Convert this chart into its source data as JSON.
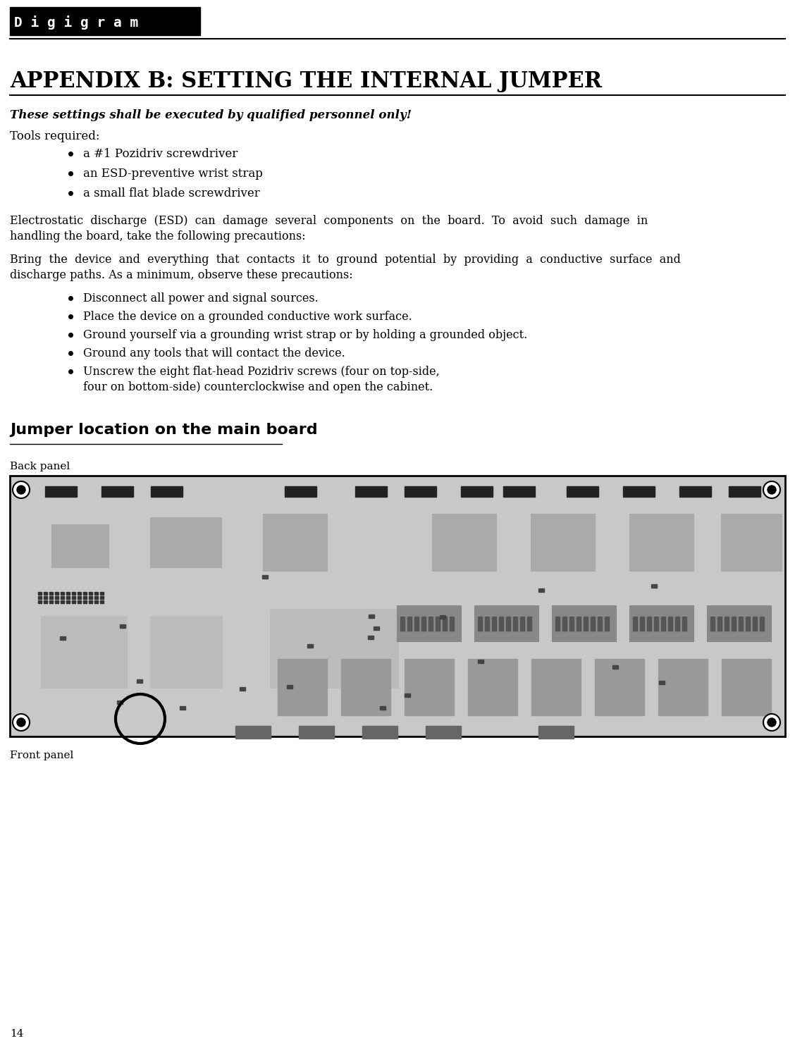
{
  "bg_color": "#ffffff",
  "header_bg": "#000000",
  "header_text": "D i g i g r a m",
  "header_text_color": "#ffffff",
  "title": "APPENDIX B: SETTING THE INTERNAL JUMPER",
  "subtitle": "These settings shall be executed by qualified personnel only!",
  "tools_label": "Tools required:",
  "tools_items": [
    "a #1 Pozidriv screwdriver",
    "an ESD-preventive wrist strap",
    "a small flat blade screwdriver"
  ],
  "esd_para1": "Electrostatic  discharge  (ESD)  can  damage  several  components  on  the  board.  To  avoid  such  damage  in\nhandling the board, take the following precautions:",
  "esd_para2": "Bring  the  device  and  everything  that  contacts  it  to  ground  potential  by  providing  a  conductive  surface  and\ndischarge paths. As a minimum, observe these precautions:",
  "precautions": [
    "Disconnect all power and signal sources.",
    "Place the device on a grounded conductive work surface.",
    "Ground yourself via a grounding wrist strap or by holding a grounded object.",
    "Ground any tools that will contact the device.",
    "Unscrew the eight flat-head Pozidriv screws (four on top-side,\n       four on bottom-side) counterclockwise and open the cabinet."
  ],
  "section_title": "Jumper location on the main board",
  "back_panel_label": "Back panel",
  "front_panel_label": "Front panel",
  "page_number": "14",
  "figsize": [
    11.28,
    14.8
  ],
  "dpi": 100
}
